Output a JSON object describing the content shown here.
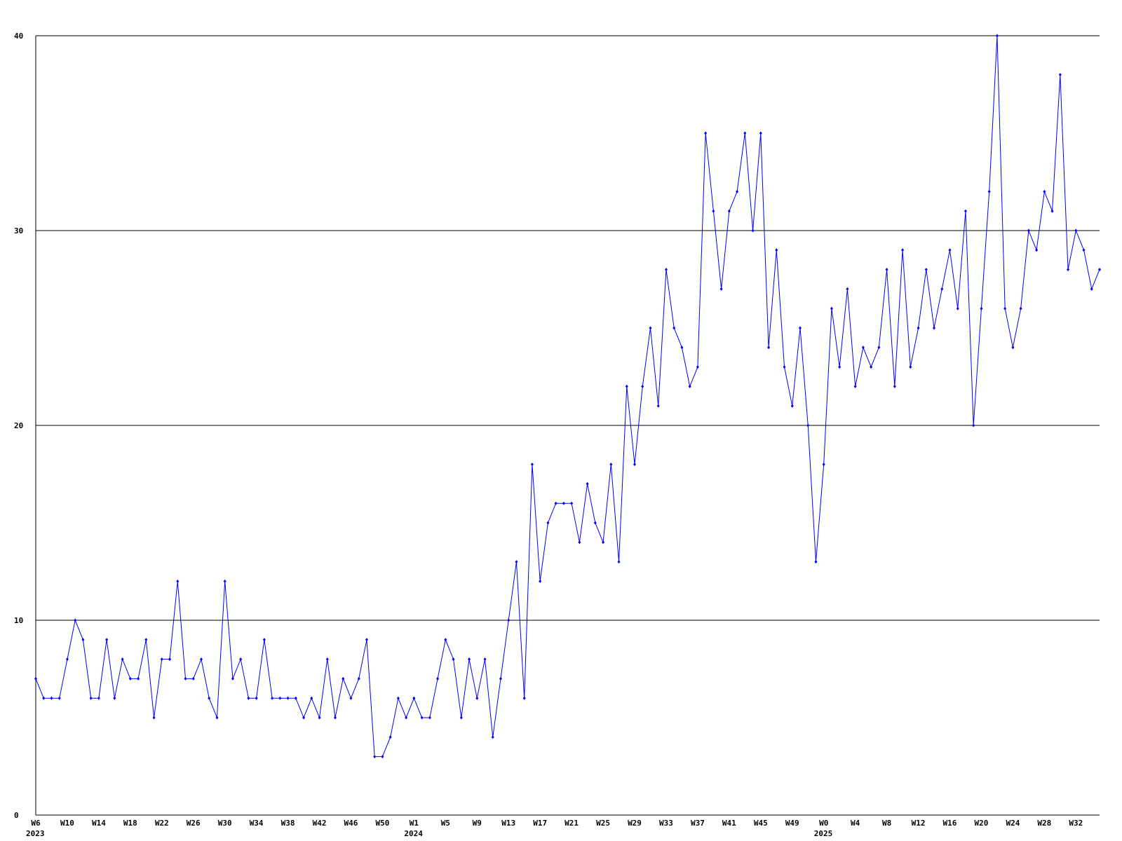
{
  "chart_data": {
    "type": "line",
    "categories": [
      "W6",
      null,
      null,
      null,
      "W10",
      null,
      null,
      null,
      "W14",
      null,
      null,
      null,
      "W18",
      null,
      null,
      null,
      "W22",
      null,
      null,
      null,
      "W26",
      null,
      null,
      null,
      "W30",
      null,
      null,
      null,
      "W34",
      null,
      null,
      null,
      "W38",
      null,
      null,
      null,
      "W42",
      null,
      null,
      null,
      "W46",
      null,
      null,
      null,
      "W50",
      null,
      null,
      null,
      "W1",
      null,
      null,
      null,
      "W5",
      null,
      null,
      null,
      "W9",
      null,
      null,
      null,
      "W13",
      null,
      null,
      null,
      "W17",
      null,
      null,
      null,
      "W21",
      null,
      null,
      null,
      "W25",
      null,
      null,
      null,
      "W29",
      null,
      null,
      null,
      "W33",
      null,
      null,
      null,
      "W37",
      null,
      null,
      null,
      "W41",
      null,
      null,
      null,
      "W45",
      null,
      null,
      null,
      "W49",
      null,
      null,
      null,
      "W0",
      null,
      null,
      null,
      "W4",
      null,
      null,
      null,
      "W8",
      null,
      null,
      null,
      "W12",
      null,
      null,
      null,
      "W16",
      null,
      null,
      null,
      "W20",
      null,
      null,
      null,
      "W24",
      null,
      null,
      null,
      "W28",
      null,
      null,
      null,
      "W32",
      null,
      null,
      null
    ],
    "category_years": [
      "2023",
      null,
      null,
      null,
      null,
      null,
      null,
      null,
      null,
      null,
      null,
      null,
      null,
      null,
      null,
      null,
      null,
      null,
      null,
      null,
      null,
      null,
      null,
      null,
      null,
      null,
      null,
      null,
      null,
      null,
      null,
      null,
      null,
      null,
      null,
      null,
      null,
      null,
      null,
      null,
      null,
      null,
      null,
      null,
      null,
      null,
      null,
      null,
      "2024",
      null,
      null,
      null,
      null,
      null,
      null,
      null,
      null,
      null,
      null,
      null,
      null,
      null,
      null,
      null,
      null,
      null,
      null,
      null,
      null,
      null,
      null,
      null,
      null,
      null,
      null,
      null,
      null,
      null,
      null,
      null,
      null,
      null,
      null,
      null,
      null,
      null,
      null,
      null,
      null,
      null,
      null,
      null,
      null,
      null,
      null,
      null,
      null,
      null,
      null,
      null,
      "2025",
      null,
      null,
      null,
      null,
      null,
      null,
      null,
      null,
      null,
      null,
      null,
      null,
      null,
      null,
      null,
      null,
      null,
      null,
      null,
      null,
      null,
      null,
      null,
      null,
      null,
      null,
      null,
      null,
      null,
      null,
      null,
      null,
      null,
      null,
      null
    ],
    "series": [
      {
        "color": "#0000ff",
        "values": [
          7,
          6,
          6,
          6,
          8,
          10,
          9,
          6,
          6,
          9,
          6,
          8,
          7,
          7,
          9,
          5,
          8,
          8,
          12,
          7,
          7,
          8,
          6,
          5,
          12,
          7,
          8,
          6,
          6,
          9,
          6,
          6,
          6,
          6,
          5,
          6,
          5,
          8,
          5,
          7,
          6,
          7,
          9,
          3,
          3,
          4,
          6,
          5,
          6,
          5,
          5,
          7,
          9,
          8,
          5,
          8,
          6,
          8,
          4,
          7,
          10,
          13,
          6,
          18,
          12,
          15,
          16,
          16,
          16,
          14,
          17,
          15,
          14,
          18,
          13,
          22,
          18,
          22,
          25,
          21,
          28,
          25,
          24,
          22,
          23,
          35,
          31,
          27,
          31,
          32,
          35,
          30,
          35,
          24,
          29,
          23,
          21,
          25,
          20,
          13,
          18,
          26,
          23,
          27,
          22,
          24,
          23,
          24,
          28,
          22,
          29,
          23,
          25,
          28,
          25,
          27,
          29,
          26,
          31,
          20,
          26,
          32,
          40,
          26,
          24,
          26,
          30,
          29,
          32,
          31,
          38,
          28,
          30,
          29,
          27,
          28
        ]
      }
    ],
    "ylim": [
      0,
      40
    ],
    "yticks": [
      0,
      10,
      20,
      30,
      40
    ],
    "grid": true,
    "grid_color": "#000000"
  }
}
